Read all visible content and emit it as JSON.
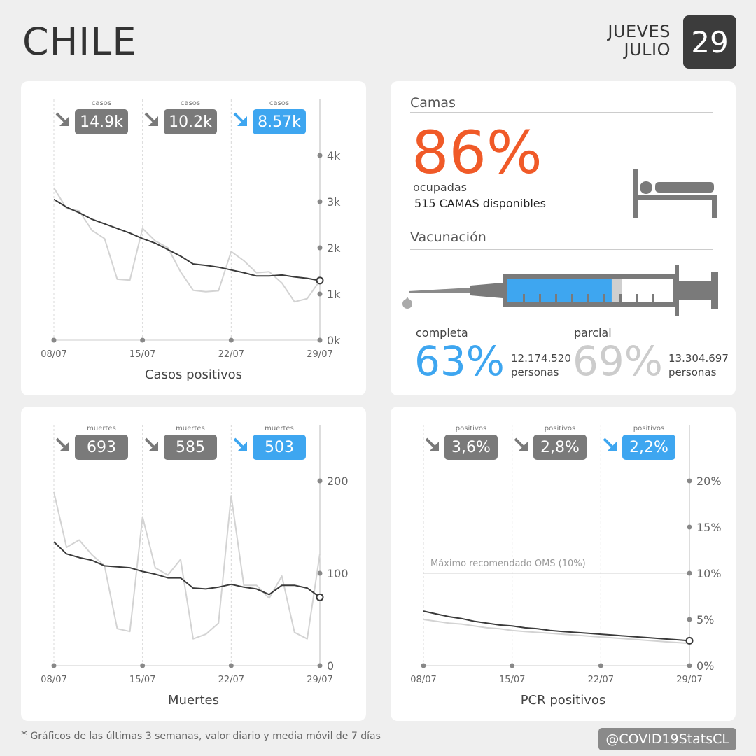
{
  "header": {
    "country": "CHILE",
    "weekday": "JUEVES",
    "month": "JULIO",
    "day": "29"
  },
  "colors": {
    "accent_blue": "#3ea6f0",
    "badge_gray": "#7a7a7a",
    "orange": "#f05a28",
    "light_gray_value": "#cccccc",
    "daily_line": "#d3d3d3",
    "avg_line": "#3a3a3a"
  },
  "camas": {
    "section_title": "Camas",
    "percent": "86%",
    "label": "ocupadas",
    "available": "515 CAMAS disponibles",
    "icon": "bed-icon"
  },
  "vacunacion": {
    "section_title": "Vacunación",
    "icon": "syringe-icon",
    "fill_complete": 0.63,
    "fill_partial": 0.69,
    "completa": {
      "label": "completa",
      "percent": "63%",
      "count": "12.174.520",
      "unit": "personas"
    },
    "parcial": {
      "label": "parcial",
      "percent": "69%",
      "count": "13.304.697",
      "unit": "personas"
    }
  },
  "footnote": "Gráficos de las últimas 3 semanas, valor diario y media móvil de 7 días",
  "footnote_star": "*",
  "handle": "@COVID19StatsCL",
  "chart_data": [
    {
      "id": "casos",
      "type": "line",
      "title": "Casos positivos",
      "x": [
        "08/07",
        "09/07",
        "10/07",
        "11/07",
        "12/07",
        "13/07",
        "14/07",
        "15/07",
        "16/07",
        "17/07",
        "18/07",
        "19/07",
        "20/07",
        "21/07",
        "22/07",
        "23/07",
        "24/07",
        "25/07",
        "26/07",
        "27/07",
        "28/07",
        "29/07"
      ],
      "x_ticks": [
        "08/07",
        "15/07",
        "22/07",
        "29/07"
      ],
      "y_ticks": [
        "0k",
        "1k",
        "2k",
        "3k",
        "4k"
      ],
      "ylim": [
        0,
        4000
      ],
      "series": [
        {
          "values": [
            3300,
            2850,
            2800,
            2380,
            2200,
            1320,
            1300,
            2420,
            2150,
            2000,
            1480,
            1080,
            1050,
            1070,
            1920,
            1720,
            1460,
            1480,
            1240,
            830,
            900,
            1290
          ]
        },
        {
          "values": [
            3050,
            2880,
            2760,
            2620,
            2520,
            2420,
            2320,
            2200,
            2100,
            1960,
            1820,
            1650,
            1620,
            1580,
            1520,
            1460,
            1390,
            1390,
            1410,
            1370,
            1340,
            1290
          ]
        }
      ],
      "badges": [
        {
          "label": "casos",
          "value": "14.9k",
          "trend": "down",
          "highlight": false
        },
        {
          "label": "casos",
          "value": "10.2k",
          "trend": "down",
          "highlight": false
        },
        {
          "label": "casos",
          "value": "8.57k",
          "trend": "down",
          "highlight": true
        }
      ]
    },
    {
      "id": "muertes",
      "type": "line",
      "title": "Muertes",
      "x": [
        "08/07",
        "09/07",
        "10/07",
        "11/07",
        "12/07",
        "13/07",
        "14/07",
        "15/07",
        "16/07",
        "17/07",
        "18/07",
        "19/07",
        "20/07",
        "21/07",
        "22/07",
        "23/07",
        "24/07",
        "25/07",
        "26/07",
        "27/07",
        "28/07",
        "29/07"
      ],
      "x_ticks": [
        "08/07",
        "15/07",
        "22/07",
        "29/07"
      ],
      "y_ticks": [
        "0",
        "100",
        "200"
      ],
      "ylim": [
        0,
        200
      ],
      "series": [
        {
          "values": [
            188,
            128,
            136,
            120,
            108,
            40,
            37,
            161,
            106,
            98,
            115,
            29,
            34,
            46,
            184,
            87,
            87,
            73,
            97,
            36,
            29,
            121
          ]
        },
        {
          "values": [
            134,
            121,
            117,
            114,
            108,
            107,
            106,
            102,
            99,
            95,
            95,
            84,
            83,
            85,
            88,
            85,
            83,
            77,
            87,
            87,
            84,
            74
          ]
        }
      ],
      "badges": [
        {
          "label": "muertes",
          "value": "693",
          "trend": "down",
          "highlight": false
        },
        {
          "label": "muertes",
          "value": "585",
          "trend": "down",
          "highlight": false
        },
        {
          "label": "muertes",
          "value": "503",
          "trend": "down",
          "highlight": true
        }
      ]
    },
    {
      "id": "pcr",
      "type": "line",
      "title": "PCR positivos",
      "x": [
        "08/07",
        "09/07",
        "10/07",
        "11/07",
        "12/07",
        "13/07",
        "14/07",
        "15/07",
        "16/07",
        "17/07",
        "18/07",
        "19/07",
        "20/07",
        "21/07",
        "22/07",
        "23/07",
        "24/07",
        "25/07",
        "26/07",
        "27/07",
        "28/07",
        "29/07"
      ],
      "x_ticks": [
        "08/07",
        "15/07",
        "22/07",
        "29/07"
      ],
      "y_ticks": [
        "0%",
        "5%",
        "10%",
        "15%",
        "20%"
      ],
      "ylim": [
        0,
        20
      ],
      "reference": {
        "value": 10,
        "label": "Máximo recomendado OMS (10%)"
      },
      "series": [
        {
          "values": [
            5.0,
            4.8,
            4.6,
            4.5,
            4.3,
            4.1,
            4.0,
            3.8,
            3.7,
            3.6,
            3.5,
            3.4,
            3.3,
            3.2,
            3.1,
            3.0,
            2.9,
            2.8,
            2.7,
            2.6,
            2.5,
            2.4
          ]
        },
        {
          "values": [
            5.9,
            5.6,
            5.3,
            5.1,
            4.8,
            4.6,
            4.4,
            4.3,
            4.1,
            4.0,
            3.8,
            3.7,
            3.6,
            3.5,
            3.4,
            3.3,
            3.2,
            3.1,
            3.0,
            2.9,
            2.8,
            2.7
          ]
        }
      ],
      "badges": [
        {
          "label": "positivos",
          "value": "3,6%",
          "trend": "down",
          "highlight": false
        },
        {
          "label": "positivos",
          "value": "2,8%",
          "trend": "down",
          "highlight": false
        },
        {
          "label": "positivos",
          "value": "2,2%",
          "trend": "down",
          "highlight": true
        }
      ]
    }
  ]
}
